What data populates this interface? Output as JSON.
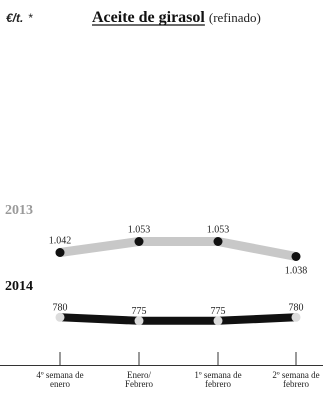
{
  "header": {
    "unit": "€/t.",
    "unit_marker": "*",
    "title": "Aceite de girasol",
    "subtitle": "(refinado)"
  },
  "chart_data": {
    "type": "line",
    "categories": [
      [
        "4º semana de",
        "enero"
      ],
      [
        "Enero/",
        "Febrero"
      ],
      [
        "1º semana de",
        "febrero"
      ],
      [
        "2º semana de",
        "febrero"
      ]
    ],
    "series": [
      {
        "name": "2013",
        "values": [
          1042,
          1053,
          1053,
          1038
        ],
        "labels": [
          "1.042",
          "1.053",
          "1.053",
          "1.038"
        ],
        "line_color": "#c8c8c8",
        "marker_color": "#111111",
        "name_color": "#9a9a9a"
      },
      {
        "name": "2014",
        "values": [
          780,
          775,
          775,
          780
        ],
        "labels": [
          "780",
          "775",
          "775",
          "780"
        ],
        "line_color": "#111111",
        "marker_color": "#dcdcdc",
        "name_color": "#111111"
      }
    ],
    "grid": false,
    "legend": "left"
  }
}
